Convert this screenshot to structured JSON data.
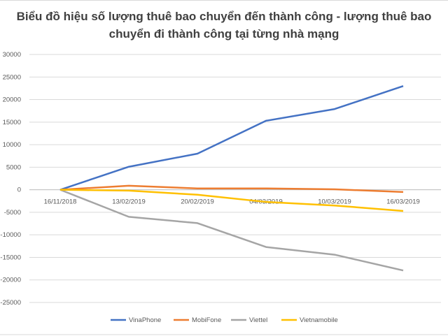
{
  "chart_data": {
    "type": "line",
    "title": "Biểu đồ hiệu số lượng thuê bao chuyển đến thành công - lượng thuê bao chuyển đi thành công tại từng nhà mạng",
    "categories": [
      "16/11/2018",
      "13/02/2019",
      "20/02/2019",
      "04/03/2019",
      "10/03/2019",
      "16/03/2019"
    ],
    "ylim": [
      -25000,
      30000
    ],
    "yticks": [
      30000,
      25000,
      20000,
      15000,
      10000,
      5000,
      0,
      -5000,
      -10000,
      -15000,
      -20000,
      -25000
    ],
    "grid": true,
    "legend": "bottom",
    "series": [
      {
        "name": "VinaPhone",
        "color": "#4472c4",
        "values": [
          0,
          5100,
          8000,
          15300,
          17900,
          23000
        ]
      },
      {
        "name": "MobiFone",
        "color": "#ed7d31",
        "values": [
          0,
          900,
          300,
          300,
          100,
          -500
        ]
      },
      {
        "name": "Viettel",
        "color": "#a5a5a5",
        "values": [
          0,
          -6000,
          -7400,
          -12700,
          -14400,
          -17900
        ]
      },
      {
        "name": "Vietnamobile",
        "color": "#ffc000",
        "values": [
          0,
          -200,
          -1100,
          -2700,
          -3500,
          -4700
        ]
      }
    ]
  }
}
